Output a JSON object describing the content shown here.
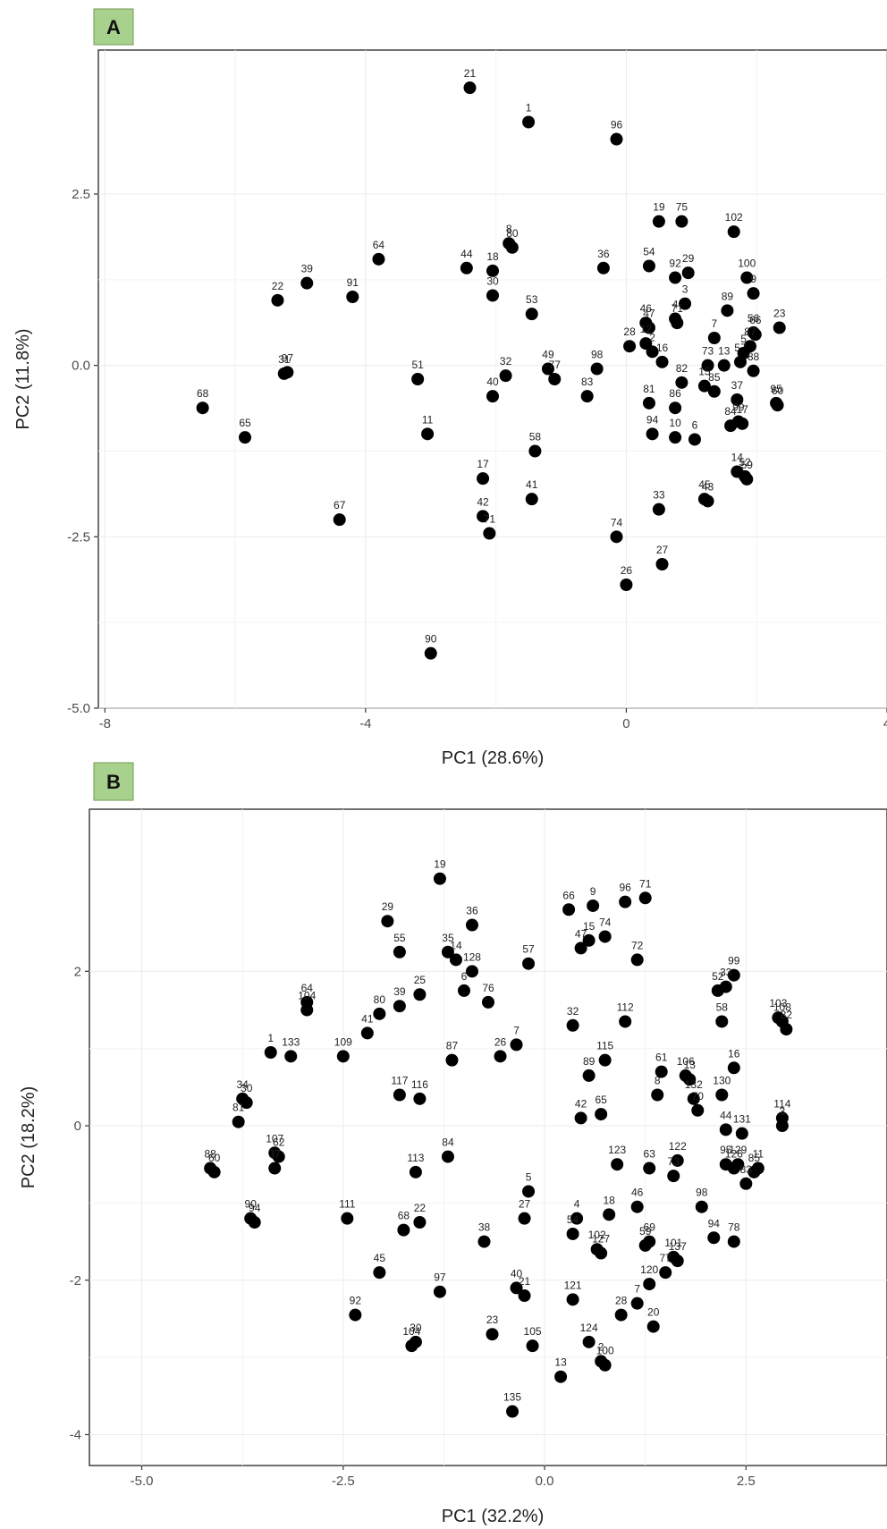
{
  "chart_data": [
    {
      "type": "scatter",
      "panel_label": "A",
      "xlabel": "PC1 (28.6%)",
      "ylabel": "PC2 (11.8%)",
      "xlim": [
        -8.1,
        4.0
      ],
      "ylim": [
        -5.0,
        4.6
      ],
      "x_ticks": [
        -8,
        -4,
        0,
        4
      ],
      "y_ticks": [
        2.5,
        0.0,
        -2.5,
        -5.0
      ],
      "x_tick_labels": [
        "-8",
        "-4",
        "0",
        "4"
      ],
      "y_tick_labels": [
        "2.5",
        "0.0",
        "-2.5",
        "-5.0"
      ],
      "grid": true,
      "points": [
        {
          "label": "21",
          "x": -2.4,
          "y": 4.05
        },
        {
          "label": "1",
          "x": -1.5,
          "y": 3.55
        },
        {
          "label": "96",
          "x": -0.15,
          "y": 3.3
        },
        {
          "label": "19",
          "x": 0.5,
          "y": 2.1
        },
        {
          "label": "75",
          "x": 0.85,
          "y": 2.1
        },
        {
          "label": "102",
          "x": 1.65,
          "y": 1.95
        },
        {
          "label": "64",
          "x": -3.8,
          "y": 1.55
        },
        {
          "label": "39",
          "x": -4.9,
          "y": 1.2
        },
        {
          "label": "22",
          "x": -5.35,
          "y": 0.95
        },
        {
          "label": "91",
          "x": -4.2,
          "y": 1.0
        },
        {
          "label": "44",
          "x": -2.45,
          "y": 1.42
        },
        {
          "label": "18",
          "x": -2.05,
          "y": 1.38
        },
        {
          "label": "8",
          "x": -1.8,
          "y": 1.78
        },
        {
          "label": "80",
          "x": -1.75,
          "y": 1.72
        },
        {
          "label": "36",
          "x": -0.35,
          "y": 1.42
        },
        {
          "label": "54",
          "x": 0.35,
          "y": 1.45
        },
        {
          "label": "29",
          "x": 0.95,
          "y": 1.35
        },
        {
          "label": "92",
          "x": 0.75,
          "y": 1.28
        },
        {
          "label": "100",
          "x": 1.85,
          "y": 1.28
        },
        {
          "label": "9",
          "x": 1.95,
          "y": 1.05
        },
        {
          "label": "30",
          "x": -2.05,
          "y": 1.02
        },
        {
          "label": "53",
          "x": -1.45,
          "y": 0.75
        },
        {
          "label": "3",
          "x": 0.9,
          "y": 0.9
        },
        {
          "label": "89",
          "x": 1.55,
          "y": 0.8
        },
        {
          "label": "23",
          "x": 2.35,
          "y": 0.55
        },
        {
          "label": "46",
          "x": 0.3,
          "y": 0.62
        },
        {
          "label": "47",
          "x": 0.35,
          "y": 0.55
        },
        {
          "label": "4",
          "x": 0.75,
          "y": 0.68
        },
        {
          "label": "71",
          "x": 0.78,
          "y": 0.62
        },
        {
          "label": "7",
          "x": 1.35,
          "y": 0.4
        },
        {
          "label": "56",
          "x": 1.95,
          "y": 0.48
        },
        {
          "label": "66",
          "x": 1.98,
          "y": 0.45
        },
        {
          "label": "28",
          "x": 0.05,
          "y": 0.28
        },
        {
          "label": "12",
          "x": 0.3,
          "y": 0.32
        },
        {
          "label": "2",
          "x": 0.4,
          "y": 0.2
        },
        {
          "label": "16",
          "x": 0.55,
          "y": 0.05
        },
        {
          "label": "87",
          "x": 1.9,
          "y": 0.28
        },
        {
          "label": "73",
          "x": 1.25,
          "y": 0.0
        },
        {
          "label": "13",
          "x": 1.5,
          "y": 0.0
        },
        {
          "label": "57",
          "x": 1.75,
          "y": 0.05
        },
        {
          "label": "5",
          "x": 1.8,
          "y": 0.18
        },
        {
          "label": "88",
          "x": 1.95,
          "y": -0.08
        },
        {
          "label": "97",
          "x": -5.2,
          "y": -0.1
        },
        {
          "label": "31",
          "x": -5.25,
          "y": -0.12
        },
        {
          "label": "51",
          "x": -3.2,
          "y": -0.2
        },
        {
          "label": "32",
          "x": -1.85,
          "y": -0.15
        },
        {
          "label": "49",
          "x": -1.2,
          "y": -0.05
        },
        {
          "label": "77",
          "x": -1.1,
          "y": -0.2
        },
        {
          "label": "98",
          "x": -0.45,
          "y": -0.05
        },
        {
          "label": "40",
          "x": -2.05,
          "y": -0.45
        },
        {
          "label": "82",
          "x": 0.85,
          "y": -0.25
        },
        {
          "label": "15",
          "x": 1.2,
          "y": -0.3
        },
        {
          "label": "85",
          "x": 1.35,
          "y": -0.38
        },
        {
          "label": "83",
          "x": -0.6,
          "y": -0.45
        },
        {
          "label": "81",
          "x": 0.35,
          "y": -0.55
        },
        {
          "label": "86",
          "x": 0.75,
          "y": -0.62
        },
        {
          "label": "37",
          "x": 1.7,
          "y": -0.5
        },
        {
          "label": "95",
          "x": 2.3,
          "y": -0.55
        },
        {
          "label": "60",
          "x": 2.32,
          "y": -0.58
        },
        {
          "label": "68",
          "x": -6.5,
          "y": -0.62
        },
        {
          "label": "65",
          "x": -5.85,
          "y": -1.05
        },
        {
          "label": "11",
          "x": -3.05,
          "y": -1.0
        },
        {
          "label": "94",
          "x": 0.4,
          "y": -1.0
        },
        {
          "label": "10",
          "x": 0.75,
          "y": -1.05
        },
        {
          "label": "6",
          "x": 1.05,
          "y": -1.08
        },
        {
          "label": "84",
          "x": 1.6,
          "y": -0.88
        },
        {
          "label": "99",
          "x": 1.72,
          "y": -0.82
        },
        {
          "label": "17",
          "x": 1.78,
          "y": -0.85
        },
        {
          "label": "58",
          "x": -1.4,
          "y": -1.25
        },
        {
          "label": "14",
          "x": 1.7,
          "y": -1.55
        },
        {
          "label": "52",
          "x": 1.82,
          "y": -1.62
        },
        {
          "label": "59",
          "x": 1.85,
          "y": -1.66
        },
        {
          "label": "17",
          "x": -2.2,
          "y": -1.65
        },
        {
          "label": "41",
          "x": -1.45,
          "y": -1.95
        },
        {
          "label": "45",
          "x": 1.2,
          "y": -1.95
        },
        {
          "label": "43",
          "x": 1.25,
          "y": -1.98
        },
        {
          "label": "33",
          "x": 0.5,
          "y": -2.1
        },
        {
          "label": "67",
          "x": -4.4,
          "y": -2.25
        },
        {
          "label": "42",
          "x": -2.2,
          "y": -2.2
        },
        {
          "label": "71",
          "x": -2.1,
          "y": -2.45
        },
        {
          "label": "74",
          "x": -0.15,
          "y": -2.5
        },
        {
          "label": "27",
          "x": 0.55,
          "y": -2.9
        },
        {
          "label": "26",
          "x": 0.0,
          "y": -3.2
        },
        {
          "label": "90",
          "x": -3.0,
          "y": -4.2
        }
      ]
    },
    {
      "type": "scatter",
      "panel_label": "B",
      "xlabel": "PC1 (32.2%)",
      "ylabel": "PC2 (18.2%)",
      "xlim": [
        -5.65,
        4.25
      ],
      "ylim": [
        -4.4,
        4.1
      ],
      "x_ticks": [
        -5.0,
        -2.5,
        0.0,
        2.5
      ],
      "y_ticks": [
        2,
        0,
        -2,
        -4
      ],
      "x_tick_labels": [
        "-5.0",
        "-2.5",
        "0.0",
        "2.5"
      ],
      "y_tick_labels": [
        "2",
        "0",
        "-2",
        "-4"
      ],
      "grid": true,
      "points": [
        {
          "label": "19",
          "x": -1.3,
          "y": 3.2
        },
        {
          "label": "71",
          "x": 1.25,
          "y": 2.95
        },
        {
          "label": "96",
          "x": 1.0,
          "y": 2.9
        },
        {
          "label": "9",
          "x": 0.6,
          "y": 2.85
        },
        {
          "label": "66",
          "x": 0.3,
          "y": 2.8
        },
        {
          "label": "29",
          "x": -1.95,
          "y": 2.65
        },
        {
          "label": "36",
          "x": -0.9,
          "y": 2.6
        },
        {
          "label": "74",
          "x": 0.75,
          "y": 2.45
        },
        {
          "label": "15",
          "x": 0.55,
          "y": 2.4
        },
        {
          "label": "47",
          "x": 0.45,
          "y": 2.3
        },
        {
          "label": "55",
          "x": -1.8,
          "y": 2.25
        },
        {
          "label": "35",
          "x": -1.2,
          "y": 2.25
        },
        {
          "label": "14",
          "x": -1.1,
          "y": 2.15
        },
        {
          "label": "72",
          "x": 1.15,
          "y": 2.15
        },
        {
          "label": "57",
          "x": -0.2,
          "y": 2.1
        },
        {
          "label": "128",
          "x": -0.9,
          "y": 2.0
        },
        {
          "label": "99",
          "x": 2.35,
          "y": 1.95
        },
        {
          "label": "33",
          "x": 2.25,
          "y": 1.8
        },
        {
          "label": "52",
          "x": 2.15,
          "y": 1.75
        },
        {
          "label": "64",
          "x": -2.95,
          "y": 1.6
        },
        {
          "label": "104",
          "x": -2.95,
          "y": 1.5
        },
        {
          "label": "25",
          "x": -1.55,
          "y": 1.7
        },
        {
          "label": "6",
          "x": -1.0,
          "y": 1.75
        },
        {
          "label": "76",
          "x": -0.7,
          "y": 1.6
        },
        {
          "label": "39",
          "x": -1.8,
          "y": 1.55
        },
        {
          "label": "80",
          "x": -2.05,
          "y": 1.45
        },
        {
          "label": "112",
          "x": 1.0,
          "y": 1.35
        },
        {
          "label": "58",
          "x": 2.2,
          "y": 1.35
        },
        {
          "label": "103",
          "x": 2.9,
          "y": 1.4
        },
        {
          "label": "108",
          "x": 2.95,
          "y": 1.35
        },
        {
          "label": "32",
          "x": 0.35,
          "y": 1.3
        },
        {
          "label": "82",
          "x": 3.0,
          "y": 1.25
        },
        {
          "label": "41",
          "x": -2.2,
          "y": 1.2
        },
        {
          "label": "7",
          "x": -0.35,
          "y": 1.05
        },
        {
          "label": "26",
          "x": -0.55,
          "y": 0.9
        },
        {
          "label": "1",
          "x": -3.4,
          "y": 0.95
        },
        {
          "label": "133",
          "x": -3.15,
          "y": 0.9
        },
        {
          "label": "109",
          "x": -2.5,
          "y": 0.9
        },
        {
          "label": "87",
          "x": -1.15,
          "y": 0.85
        },
        {
          "label": "115",
          "x": 0.75,
          "y": 0.85
        },
        {
          "label": "16",
          "x": 2.35,
          "y": 0.75
        },
        {
          "label": "61",
          "x": 1.45,
          "y": 0.7
        },
        {
          "label": "89",
          "x": 0.55,
          "y": 0.65
        },
        {
          "label": "106",
          "x": 1.75,
          "y": 0.65
        },
        {
          "label": "13",
          "x": 1.8,
          "y": 0.6
        },
        {
          "label": "34",
          "x": -3.75,
          "y": 0.35
        },
        {
          "label": "30",
          "x": -3.7,
          "y": 0.3
        },
        {
          "label": "117",
          "x": -1.8,
          "y": 0.4
        },
        {
          "label": "116",
          "x": -1.55,
          "y": 0.35
        },
        {
          "label": "8",
          "x": 1.4,
          "y": 0.4
        },
        {
          "label": "130",
          "x": 2.2,
          "y": 0.4
        },
        {
          "label": "132",
          "x": 1.85,
          "y": 0.35
        },
        {
          "label": "70",
          "x": 1.9,
          "y": 0.2
        },
        {
          "label": "65",
          "x": 0.7,
          "y": 0.15
        },
        {
          "label": "42",
          "x": 0.45,
          "y": 0.1
        },
        {
          "label": "114",
          "x": 2.95,
          "y": 0.1
        },
        {
          "label": "81",
          "x": -3.8,
          "y": 0.05
        },
        {
          "label": "44",
          "x": 2.25,
          "y": -0.05
        },
        {
          "label": "131",
          "x": 2.45,
          "y": -0.1
        },
        {
          "label": "3",
          "x": 2.95,
          "y": 0.0
        },
        {
          "label": "107",
          "x": -3.35,
          "y": -0.35
        },
        {
          "label": "62",
          "x": -3.3,
          "y": -0.4
        },
        {
          "label": "84",
          "x": -1.2,
          "y": -0.4
        },
        {
          "label": "123",
          "x": 0.9,
          "y": -0.5
        },
        {
          "label": "122",
          "x": 1.65,
          "y": -0.45
        },
        {
          "label": "95",
          "x": 2.25,
          "y": -0.5
        },
        {
          "label": "126",
          "x": 2.35,
          "y": -0.55
        },
        {
          "label": "129",
          "x": 2.4,
          "y": -0.5
        },
        {
          "label": "11",
          "x": 2.65,
          "y": -0.55
        },
        {
          "label": "85",
          "x": 2.6,
          "y": -0.6
        },
        {
          "label": "88",
          "x": -4.15,
          "y": -0.55
        },
        {
          "label": "60",
          "x": -4.1,
          "y": -0.6
        },
        {
          "label": "37",
          "x": -3.35,
          "y": -0.55
        },
        {
          "label": "113",
          "x": -1.6,
          "y": -0.6
        },
        {
          "label": "63",
          "x": 1.3,
          "y": -0.55
        },
        {
          "label": "73",
          "x": 1.6,
          "y": -0.65
        },
        {
          "label": "83",
          "x": 2.5,
          "y": -0.75
        },
        {
          "label": "5",
          "x": -0.2,
          "y": -0.85
        },
        {
          "label": "98",
          "x": 1.95,
          "y": -1.05
        },
        {
          "label": "46",
          "x": 1.15,
          "y": -1.05
        },
        {
          "label": "18",
          "x": 0.8,
          "y": -1.15
        },
        {
          "label": "4",
          "x": 0.4,
          "y": -1.2
        },
        {
          "label": "111",
          "x": -2.45,
          "y": -1.2
        },
        {
          "label": "90",
          "x": -3.65,
          "y": -1.2
        },
        {
          "label": "94",
          "x": -3.6,
          "y": -1.25
        },
        {
          "label": "27",
          "x": -0.25,
          "y": -1.2
        },
        {
          "label": "22",
          "x": -1.55,
          "y": -1.25
        },
        {
          "label": "68",
          "x": -1.75,
          "y": -1.35
        },
        {
          "label": "38",
          "x": -0.75,
          "y": -1.5
        },
        {
          "label": "54",
          "x": 0.35,
          "y": -1.4
        },
        {
          "label": "94",
          "x": 2.1,
          "y": -1.45
        },
        {
          "label": "78",
          "x": 2.35,
          "y": -1.5
        },
        {
          "label": "102",
          "x": 0.65,
          "y": -1.6
        },
        {
          "label": "127",
          "x": 0.7,
          "y": -1.65
        },
        {
          "label": "59",
          "x": 1.25,
          "y": -1.55
        },
        {
          "label": "69",
          "x": 1.3,
          "y": -1.5
        },
        {
          "label": "101",
          "x": 1.6,
          "y": -1.7
        },
        {
          "label": "137",
          "x": 1.65,
          "y": -1.75
        },
        {
          "label": "77",
          "x": 1.5,
          "y": -1.9
        },
        {
          "label": "45",
          "x": -2.05,
          "y": -1.9
        },
        {
          "label": "120",
          "x": 1.3,
          "y": -2.05
        },
        {
          "label": "40",
          "x": -0.35,
          "y": -2.1
        },
        {
          "label": "21",
          "x": -0.25,
          "y": -2.2
        },
        {
          "label": "97",
          "x": -1.3,
          "y": -2.15
        },
        {
          "label": "121",
          "x": 0.35,
          "y": -2.25
        },
        {
          "label": "7",
          "x": 1.15,
          "y": -2.3
        },
        {
          "label": "28",
          "x": 0.95,
          "y": -2.45
        },
        {
          "label": "20",
          "x": 1.35,
          "y": -2.6
        },
        {
          "label": "92",
          "x": -2.35,
          "y": -2.45
        },
        {
          "label": "23",
          "x": -0.65,
          "y": -2.7
        },
        {
          "label": "30",
          "x": -1.6,
          "y": -2.8
        },
        {
          "label": "104",
          "x": -1.65,
          "y": -2.85
        },
        {
          "label": "105",
          "x": -0.15,
          "y": -2.85
        },
        {
          "label": "124",
          "x": 0.55,
          "y": -2.8
        },
        {
          "label": "2",
          "x": 0.7,
          "y": -3.05
        },
        {
          "label": "100",
          "x": 0.75,
          "y": -3.1
        },
        {
          "label": "13",
          "x": 0.2,
          "y": -3.25
        },
        {
          "label": "135",
          "x": -0.4,
          "y": -3.7
        }
      ]
    }
  ]
}
